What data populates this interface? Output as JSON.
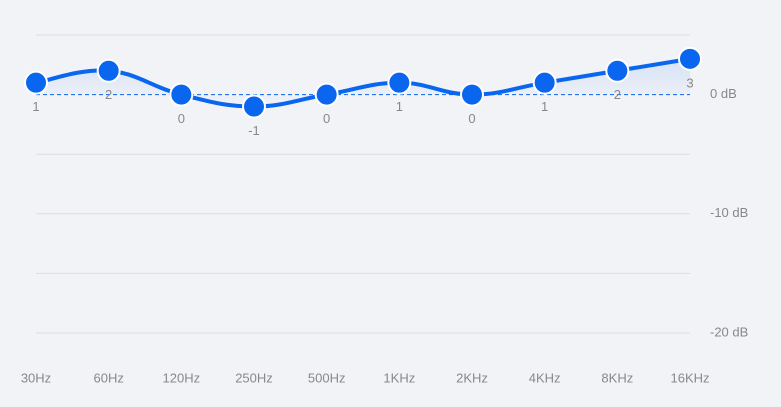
{
  "chart_data": {
    "type": "line",
    "categories": [
      "30Hz",
      "60Hz",
      "120Hz",
      "250Hz",
      "500Hz",
      "1KHz",
      "2KHz",
      "4KHz",
      "8KHz",
      "16KHz"
    ],
    "values": [
      1,
      2,
      0,
      -1,
      0,
      1,
      0,
      1,
      2,
      3
    ],
    "color": "#0a66ee",
    "ylim": [
      -20,
      5
    ],
    "yticks": [
      {
        "value": 0,
        "label": "0 dB"
      },
      {
        "value": -10,
        "label": "-10 dB"
      },
      {
        "value": -20,
        "label": "-20 dB"
      }
    ],
    "minor_yticks": [
      5,
      -5,
      -15
    ],
    "reference_line": 0,
    "grid": true
  }
}
